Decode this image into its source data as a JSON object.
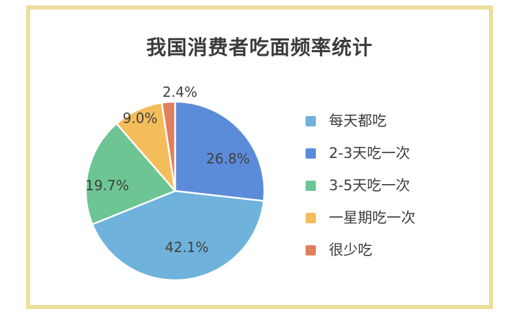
{
  "frame": {
    "border_color": "#ECDF9E"
  },
  "chart_data": {
    "type": "pie",
    "title": "我国消费者吃面频率统计",
    "categories": [
      "每天都吃",
      "2-3天吃一次",
      "3-5天吃一次",
      "一星期吃一次",
      "很少吃"
    ],
    "values": [
      42.1,
      26.8,
      19.7,
      9.0,
      2.4
    ],
    "unit": "%",
    "value_labels": [
      "42.1%",
      "26.8%",
      "19.7%",
      "9.0%",
      "2.4%"
    ],
    "colors": [
      "#6FB2DC",
      "#5B8CD9",
      "#6DC594",
      "#F4BD5B",
      "#E0805F"
    ],
    "draw_order": [
      1,
      0,
      2,
      3,
      4
    ],
    "start_angle_deg": 0,
    "clockwise": true,
    "slice_gap_color": "#FFFFFF",
    "legend_position": "right",
    "grid": false
  },
  "legend": {
    "items": [
      {
        "label": "每天都吃",
        "color": "#6FB2DC"
      },
      {
        "label": "2-3天吃一次",
        "color": "#5B8CD9"
      },
      {
        "label": "3-5天吃一次",
        "color": "#6DC594"
      },
      {
        "label": "一星期吃一次",
        "color": "#F4BD5B"
      },
      {
        "label": "很少吃",
        "color": "#E0805F"
      }
    ]
  }
}
